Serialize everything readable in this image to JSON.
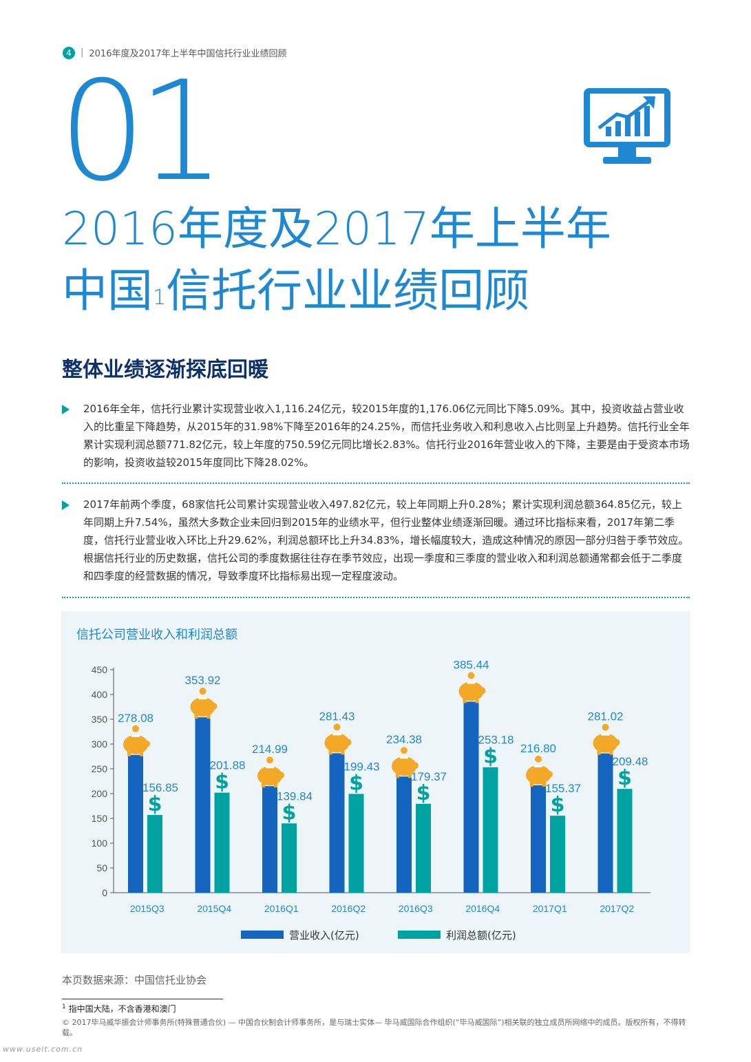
{
  "header": {
    "page_number": "4",
    "separator": "|",
    "running_title": "2016年度及2017年上半年中国信托行业业绩回顾"
  },
  "chapter": {
    "number": "01",
    "title_line1": "2016年度及2017年上半年",
    "title_line2_a": "中国",
    "title_footnote_ref": "1",
    "title_line2_b": "信托行业业绩回顾"
  },
  "icon": {
    "name": "monitor-chart-icon"
  },
  "section": {
    "heading": "整体业绩逐渐探底回暖"
  },
  "paragraphs": [
    "2016年全年，信托行业累计实现营业收入1,116.24亿元，较2015年度的1,176.06亿元同比下降5.09%。其中，投资收益占营业收入的比重呈下降趋势，从2015年的31.98%下降至2016年的24.25%，而信托业务收入和利息收入占比则呈上升趋势。信托行业全年累计实现利润总额771.82亿元，较上年度的750.59亿元同比增长2.83%。信托行业2016年营业收入的下降，主要是由于受资本市场的影响，投资收益较2015年度同比下降28.02%。",
    "2017年前两个季度，68家信托公司累计实现营业收入497.82亿元，较上年同期上升0.28%；累计实现利润总额364.85亿元，较上年同期上升7.54%，虽然大多数企业未回归到2015年的业绩水平，但行业整体业绩逐渐回暖。通过环比指标来看，2017年第二季度，信托行业营业收入环比上升29.62%，利润总额环比上升34.83%，增长幅度较大，造成这种情况的原因一部分归咎于季节效应。根据信托行业的历史数据，信托公司的季度数据往往存在季节效应，出现一季度和三季度的营业收入和利润总额通常都会低于二季度和四季度的经营数据的情况，导致季度环比指标易出现一定程度波动。"
  ],
  "chart_data": {
    "type": "bar",
    "title": "信托公司营业收入和利润总额",
    "categories": [
      "2015Q3",
      "2015Q4",
      "2016Q1",
      "2016Q2",
      "2016Q3",
      "2016Q4",
      "2017Q1",
      "2017Q2"
    ],
    "series": [
      {
        "name": "营业收入(亿元)",
        "color": "#1565c0",
        "values": [
          278.08,
          353.92,
          214.99,
          281.43,
          234.38,
          385.44,
          216.8,
          281.02
        ],
        "labels": [
          "278.08",
          "353.92",
          "214.99",
          "281.43",
          "234.38",
          "385.44",
          "216.80",
          "281.02"
        ]
      },
      {
        "name": "利润总额(亿元)",
        "color": "#00a3a1",
        "values": [
          156.85,
          201.88,
          139.84,
          199.43,
          179.37,
          253.18,
          155.37,
          209.48
        ],
        "labels": [
          "156.85",
          "201.88",
          "139.84",
          "199.43",
          "179.37",
          "253.18",
          "155.37",
          "209.48"
        ]
      }
    ],
    "ylim": [
      0,
      450
    ],
    "yticks": [
      "0",
      "50",
      "100",
      "150",
      "200",
      "250",
      "300",
      "350",
      "400",
      "450"
    ],
    "markers": {
      "revenue": "piggy-bank-icon",
      "profit": "dollar-sign-icon",
      "dollar_glyph": "$"
    },
    "colors": {
      "label": "#1e88d2",
      "axis": "#555555",
      "piggy": "#f3a927"
    }
  },
  "source": "本页数据来源：中国信托业协会",
  "footnote": {
    "ref": "1",
    "text": "指中国大陆，不含香港和澳门"
  },
  "copyright": "© 2017毕马威华振会计师事务所(特殊普通合伙) — 中国合伙制会计师事务所，是与瑞士实体— 毕马威国际合作组织(“毕马威国际”)相关联的独立成员所网络中的成员。版权所有，不得转载。",
  "watermark": "www.useit.com.cn"
}
